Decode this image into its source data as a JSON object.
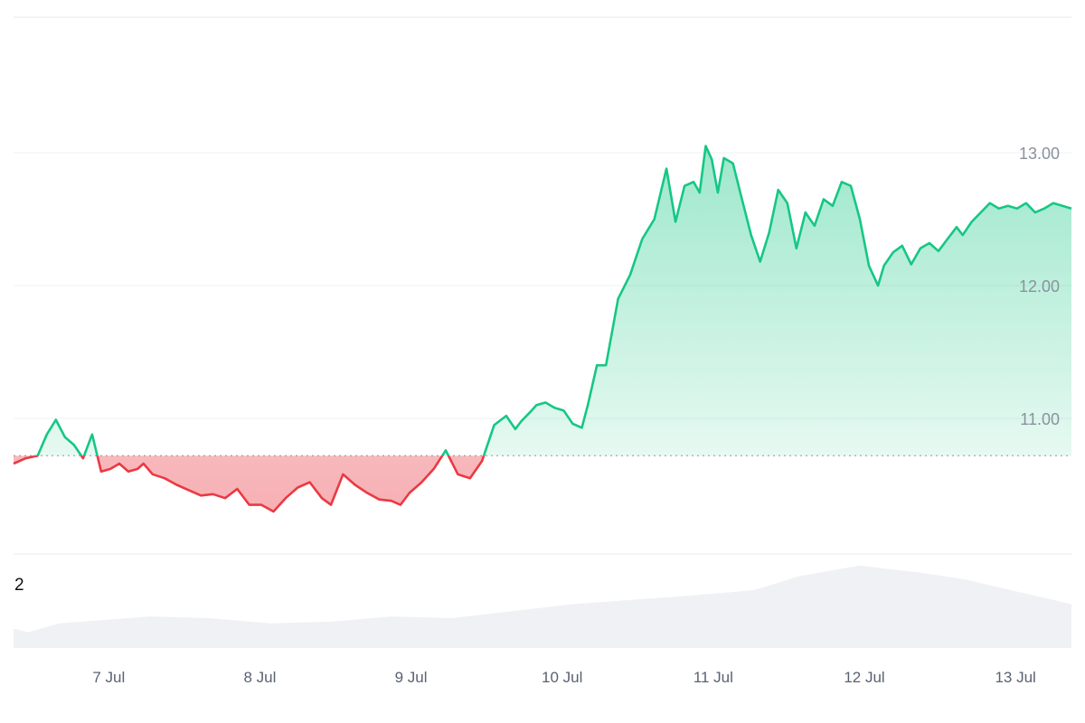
{
  "chart_data": {
    "type": "area",
    "title": "",
    "xlabel": "",
    "ylabel": "",
    "baseline": 10.72,
    "ylim": [
      9.98,
      14.02
    ],
    "grid": true,
    "y_ticks": [
      {
        "value": 11.0,
        "label": "11.00"
      },
      {
        "value": 12.0,
        "label": "12.00"
      },
      {
        "value": 13.0,
        "label": "13.00"
      }
    ],
    "x_ticks": [
      {
        "value": 0.63,
        "label": "7 Jul"
      },
      {
        "value": 1.63,
        "label": "8 Jul"
      },
      {
        "value": 2.63,
        "label": "9 Jul"
      },
      {
        "value": 3.63,
        "label": "10 Jul"
      },
      {
        "value": 4.63,
        "label": "11 Jul"
      },
      {
        "value": 5.63,
        "label": "12 Jul"
      },
      {
        "value": 6.63,
        "label": "13 Jul"
      }
    ],
    "xlim": [
      0,
      7.0
    ],
    "colors": {
      "up": "#16c784",
      "down": "#ea3943",
      "up_fill": "#16c784",
      "down_fill": "#ea3943",
      "grid": "#eef0f3",
      "baseline": "#9aa0a8",
      "volume": "#eff1f5"
    },
    "price": {
      "x": [
        0.0,
        0.08,
        0.16,
        0.22,
        0.28,
        0.34,
        0.4,
        0.46,
        0.52,
        0.58,
        0.64,
        0.7,
        0.76,
        0.82,
        0.86,
        0.92,
        1.0,
        1.08,
        1.16,
        1.24,
        1.32,
        1.4,
        1.48,
        1.56,
        1.64,
        1.72,
        1.8,
        1.88,
        1.96,
        2.04,
        2.1,
        2.18,
        2.26,
        2.34,
        2.42,
        2.5,
        2.56,
        2.62,
        2.7,
        2.78,
        2.86,
        2.94,
        3.02,
        3.1,
        3.18,
        3.26,
        3.32,
        3.36,
        3.42,
        3.46,
        3.52,
        3.58,
        3.64,
        3.7,
        3.76,
        3.8,
        3.86,
        3.92,
        4.0,
        4.08,
        4.16,
        4.24,
        4.32,
        4.38,
        4.44,
        4.5,
        4.54,
        4.58,
        4.62,
        4.66,
        4.7,
        4.76,
        4.82,
        4.88,
        4.94,
        5.0,
        5.06,
        5.12,
        5.18,
        5.24,
        5.3,
        5.36,
        5.42,
        5.48,
        5.54,
        5.6,
        5.66,
        5.72,
        5.76,
        5.82,
        5.88,
        5.94,
        6.0,
        6.06,
        6.12,
        6.18,
        6.24,
        6.28,
        6.34,
        6.4,
        6.46,
        6.52,
        6.58,
        6.64,
        6.7,
        6.76,
        6.82,
        6.88,
        6.94,
        7.0
      ],
      "y": [
        10.66,
        10.7,
        10.72,
        10.88,
        10.99,
        10.86,
        10.8,
        10.7,
        10.88,
        10.6,
        10.62,
        10.66,
        10.6,
        10.62,
        10.66,
        10.58,
        10.55,
        10.5,
        10.46,
        10.42,
        10.43,
        10.4,
        10.47,
        10.35,
        10.35,
        10.3,
        10.4,
        10.48,
        10.52,
        10.4,
        10.35,
        10.58,
        10.5,
        10.44,
        10.39,
        10.38,
        10.35,
        10.44,
        10.52,
        10.62,
        10.76,
        10.58,
        10.55,
        10.68,
        10.95,
        11.02,
        10.92,
        10.98,
        11.05,
        11.1,
        11.12,
        11.08,
        11.06,
        10.96,
        10.93,
        11.1,
        11.4,
        11.4,
        11.9,
        12.08,
        12.35,
        12.5,
        12.88,
        12.48,
        12.75,
        12.78,
        12.7,
        13.05,
        12.95,
        12.7,
        12.96,
        12.92,
        12.65,
        12.38,
        12.18,
        12.4,
        12.72,
        12.62,
        12.28,
        12.55,
        12.45,
        12.65,
        12.6,
        12.78,
        12.75,
        12.5,
        12.15,
        12.0,
        12.15,
        12.25,
        12.3,
        12.16,
        12.28,
        12.32,
        12.26,
        12.35,
        12.44,
        12.38,
        12.48,
        12.55,
        12.62,
        12.58,
        12.6,
        12.58,
        12.62,
        12.55,
        12.58,
        12.62,
        12.6,
        12.58
      ]
    },
    "volume_axis_label": "2",
    "volume": {
      "x": [
        0.0,
        0.1,
        0.3,
        0.6,
        0.9,
        1.3,
        1.7,
        2.1,
        2.5,
        2.9,
        3.3,
        3.7,
        4.1,
        4.5,
        4.9,
        5.2,
        5.4,
        5.6,
        5.8,
        6.0,
        6.3,
        6.6,
        6.9,
        7.0
      ],
      "y": [
        0.22,
        0.18,
        0.28,
        0.32,
        0.36,
        0.34,
        0.28,
        0.3,
        0.36,
        0.34,
        0.42,
        0.5,
        0.55,
        0.6,
        0.66,
        0.82,
        0.88,
        0.94,
        0.9,
        0.86,
        0.78,
        0.66,
        0.54,
        0.5
      ]
    }
  }
}
